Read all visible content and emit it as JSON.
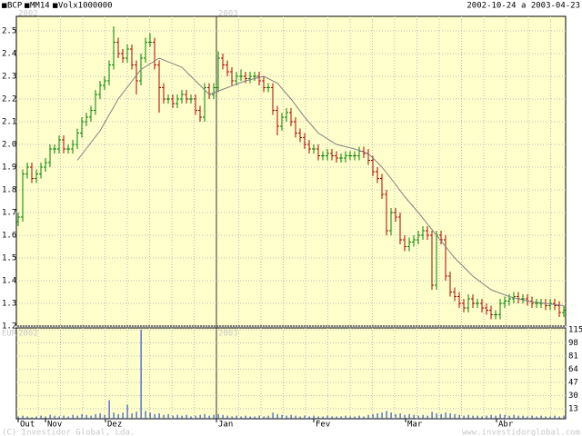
{
  "chart_data": [
    {
      "type": "ohlc",
      "date_range": "2002-10-24 a 2003-04-23",
      "year_labels": [
        "2002",
        "2003"
      ],
      "xlim": [
        -0.4,
        120.4
      ],
      "ylim": [
        1.2,
        2.56
      ],
      "yticks": [
        1.2,
        1.3,
        1.4,
        1.5,
        1.6,
        1.7,
        1.8,
        1.9,
        {
          "value": 2,
          "label": "2.0"
        },
        2.1,
        2.2,
        2.3,
        2.4,
        2.5
      ],
      "grid": true,
      "series": [
        {
          "name": "BCP",
          "color": "#008000",
          "down_color": "#b00000",
          "open": [
            1.66,
            1.68,
            1.87,
            1.9,
            1.85,
            1.87,
            1.9,
            1.92,
            1.98,
            1.98,
            2.02,
            1.98,
            1.98,
            2.0,
            2.05,
            2.1,
            2.12,
            2.15,
            2.22,
            2.26,
            2.28,
            2.35,
            2.45,
            2.4,
            2.38,
            2.42,
            2.35,
            2.28,
            2.38,
            2.45,
            2.45,
            2.35,
            2.25,
            2.2,
            2.2,
            2.18,
            2.2,
            2.22,
            2.2,
            2.2,
            2.15,
            2.12,
            2.25,
            2.22,
            2.25,
            2.38,
            2.35,
            2.32,
            2.28,
            2.3,
            2.3,
            2.29,
            2.3,
            2.3,
            2.28,
            2.25,
            2.25,
            2.15,
            2.08,
            2.12,
            2.14,
            2.1,
            2.05,
            2.03,
            2.0,
            1.98,
            1.98,
            1.95,
            1.95,
            1.96,
            1.95,
            1.94,
            1.94,
            1.95,
            1.95,
            1.95,
            1.97,
            1.96,
            1.93,
            1.88,
            1.85,
            1.78,
            1.62,
            1.7,
            1.68,
            1.58,
            1.55,
            1.57,
            1.58,
            1.6,
            1.62,
            1.6,
            1.38,
            1.6,
            1.58,
            1.42,
            1.35,
            1.33,
            1.3,
            1.28,
            1.32,
            1.3,
            1.3,
            1.28,
            1.27,
            1.25,
            1.25,
            1.3,
            1.31,
            1.32,
            1.33,
            1.32,
            1.32,
            1.31,
            1.3,
            1.3,
            1.3,
            1.29,
            1.3,
            1.29,
            1.26
          ],
          "high": [
            1.7,
            1.89,
            1.92,
            1.92,
            1.89,
            1.92,
            1.94,
            2.0,
            2.0,
            2.04,
            2.04,
            2.0,
            2.02,
            2.07,
            2.12,
            2.14,
            2.17,
            2.24,
            2.28,
            2.3,
            2.37,
            2.52,
            2.47,
            2.42,
            2.44,
            2.44,
            2.37,
            2.4,
            2.47,
            2.49,
            2.47,
            2.37,
            2.27,
            2.22,
            2.22,
            2.22,
            2.24,
            2.24,
            2.22,
            2.22,
            2.17,
            2.27,
            2.27,
            2.27,
            2.41,
            2.4,
            2.37,
            2.34,
            2.32,
            2.33,
            2.32,
            2.32,
            2.32,
            2.32,
            2.3,
            2.27,
            2.27,
            2.17,
            2.14,
            2.16,
            2.16,
            2.12,
            2.07,
            2.05,
            2.02,
            2.0,
            2.0,
            1.97,
            1.98,
            1.98,
            1.97,
            1.96,
            1.97,
            1.97,
            1.97,
            1.99,
            1.99,
            1.98,
            1.95,
            1.9,
            1.87,
            1.8,
            1.72,
            1.72,
            1.7,
            1.6,
            1.59,
            1.6,
            1.62,
            1.64,
            1.64,
            1.62,
            1.62,
            1.62,
            1.6,
            1.44,
            1.37,
            1.35,
            1.32,
            1.34,
            1.34,
            1.32,
            1.32,
            1.3,
            1.29,
            1.27,
            1.32,
            1.33,
            1.34,
            1.35,
            1.35,
            1.34,
            1.34,
            1.33,
            1.32,
            1.32,
            1.32,
            1.32,
            1.32,
            1.31,
            1.29
          ],
          "low": [
            1.64,
            1.66,
            1.85,
            1.83,
            1.83,
            1.85,
            1.88,
            1.9,
            1.96,
            1.96,
            1.96,
            1.96,
            1.96,
            1.98,
            2.03,
            2.08,
            2.1,
            2.13,
            2.2,
            2.24,
            2.26,
            2.33,
            2.38,
            2.36,
            2.36,
            2.33,
            2.22,
            2.26,
            2.36,
            2.43,
            2.33,
            2.14,
            2.18,
            2.18,
            2.16,
            2.16,
            2.18,
            2.18,
            2.18,
            2.13,
            2.1,
            2.1,
            2.2,
            2.2,
            2.23,
            2.33,
            2.3,
            2.26,
            2.26,
            2.28,
            2.27,
            2.27,
            2.28,
            2.26,
            2.23,
            2.23,
            2.13,
            2.04,
            2.06,
            2.1,
            2.08,
            2.03,
            2.01,
            1.98,
            1.96,
            1.96,
            1.93,
            1.93,
            1.93,
            1.93,
            1.92,
            1.92,
            1.92,
            1.93,
            1.93,
            1.93,
            1.94,
            1.91,
            1.86,
            1.83,
            1.76,
            1.6,
            1.6,
            1.66,
            1.56,
            1.53,
            1.53,
            1.55,
            1.56,
            1.58,
            1.58,
            1.36,
            1.36,
            1.56,
            1.4,
            1.33,
            1.31,
            1.28,
            1.26,
            1.26,
            1.28,
            1.28,
            1.26,
            1.25,
            1.23,
            1.23,
            1.23,
            1.28,
            1.29,
            1.3,
            1.3,
            1.3,
            1.29,
            1.28,
            1.28,
            1.28,
            1.27,
            1.27,
            1.27,
            1.24,
            1.24
          ],
          "close": [
            1.68,
            1.87,
            1.9,
            1.85,
            1.87,
            1.9,
            1.92,
            1.98,
            1.98,
            2.02,
            1.98,
            1.98,
            2.0,
            2.05,
            2.1,
            2.12,
            2.15,
            2.22,
            2.26,
            2.28,
            2.35,
            2.45,
            2.4,
            2.38,
            2.42,
            2.35,
            2.28,
            2.38,
            2.45,
            2.45,
            2.35,
            2.25,
            2.2,
            2.2,
            2.18,
            2.2,
            2.22,
            2.2,
            2.2,
            2.15,
            2.12,
            2.25,
            2.22,
            2.25,
            2.38,
            2.35,
            2.32,
            2.28,
            2.3,
            2.3,
            2.29,
            2.3,
            2.3,
            2.28,
            2.25,
            2.25,
            2.15,
            2.08,
            2.12,
            2.14,
            2.1,
            2.05,
            2.03,
            2.0,
            1.98,
            1.98,
            1.95,
            1.95,
            1.96,
            1.95,
            1.94,
            1.94,
            1.95,
            1.95,
            1.95,
            1.97,
            1.96,
            1.93,
            1.88,
            1.85,
            1.78,
            1.62,
            1.7,
            1.68,
            1.58,
            1.55,
            1.57,
            1.58,
            1.6,
            1.62,
            1.6,
            1.38,
            1.6,
            1.58,
            1.42,
            1.35,
            1.33,
            1.3,
            1.28,
            1.32,
            1.3,
            1.3,
            1.28,
            1.27,
            1.25,
            1.25,
            1.3,
            1.31,
            1.32,
            1.33,
            1.32,
            1.32,
            1.31,
            1.3,
            1.3,
            1.3,
            1.29,
            1.3,
            1.29,
            1.26,
            1.27
          ]
        },
        {
          "name": "MM14",
          "type": "line",
          "color": "#808080",
          "x": [
            13,
            18,
            22,
            27,
            31,
            36,
            42,
            46,
            50,
            54,
            57,
            60,
            63,
            66,
            70,
            74,
            77,
            80,
            82,
            85,
            88,
            92,
            96,
            100,
            104,
            108,
            112,
            116,
            120
          ],
          "values": [
            1.93,
            2.06,
            2.2,
            2.33,
            2.38,
            2.34,
            2.22,
            2.25,
            2.28,
            2.3,
            2.27,
            2.2,
            2.12,
            2.05,
            2.0,
            1.98,
            1.96,
            1.9,
            1.85,
            1.77,
            1.7,
            1.6,
            1.5,
            1.42,
            1.36,
            1.33,
            1.31,
            1.3,
            1.29
          ]
        }
      ]
    },
    {
      "type": "bar",
      "currency_label": "EUR",
      "year_labels": [
        "2002",
        "2003"
      ],
      "xlim": [
        -0.4,
        120.4
      ],
      "ylim": [
        0,
        115
      ],
      "yticks": [
        13,
        30,
        47,
        64,
        81,
        98,
        115
      ],
      "xticks": [
        {
          "value": 0,
          "label": "Out"
        },
        {
          "value": 6,
          "label": "Nov"
        },
        {
          "value": 19.2,
          "label": "Dez"
        },
        {
          "value": 43.6,
          "label": "Jan"
        },
        {
          "value": 65,
          "label": "Fev"
        },
        {
          "value": 85.2,
          "label": "Mar"
        },
        {
          "value": 105.2,
          "label": "Abr"
        }
      ],
      "grid": true,
      "series": [
        {
          "name": "Volx1000000",
          "color": "#3050d0",
          "values": [
            3,
            4,
            3,
            2,
            3,
            4,
            3,
            5,
            4,
            3,
            4,
            3,
            5,
            4,
            6,
            5,
            4,
            6,
            7,
            5,
            24,
            8,
            6,
            8,
            18,
            7,
            9,
            115,
            10,
            8,
            6,
            7,
            5,
            6,
            4,
            5,
            4,
            5,
            3,
            4,
            5,
            6,
            4,
            5,
            6,
            5,
            4,
            3,
            4,
            3,
            4,
            3,
            3,
            4,
            3,
            4,
            8,
            6,
            5,
            4,
            5,
            4,
            3,
            4,
            3,
            4,
            3,
            3,
            4,
            3,
            3,
            3,
            4,
            3,
            3,
            4,
            3,
            5,
            6,
            7,
            8,
            10,
            8,
            6,
            7,
            5,
            6,
            5,
            4,
            5,
            4,
            9,
            7,
            6,
            8,
            7,
            6,
            5,
            4,
            5,
            4,
            4,
            3,
            4,
            5,
            4,
            6,
            5,
            4,
            5,
            4,
            4,
            3,
            4,
            3,
            4,
            3,
            3,
            4,
            3,
            4
          ]
        }
      ],
      "footer_left": "(C) Investidor Global, Lda.",
      "footer_right": "www.investidorglobal.com"
    }
  ]
}
